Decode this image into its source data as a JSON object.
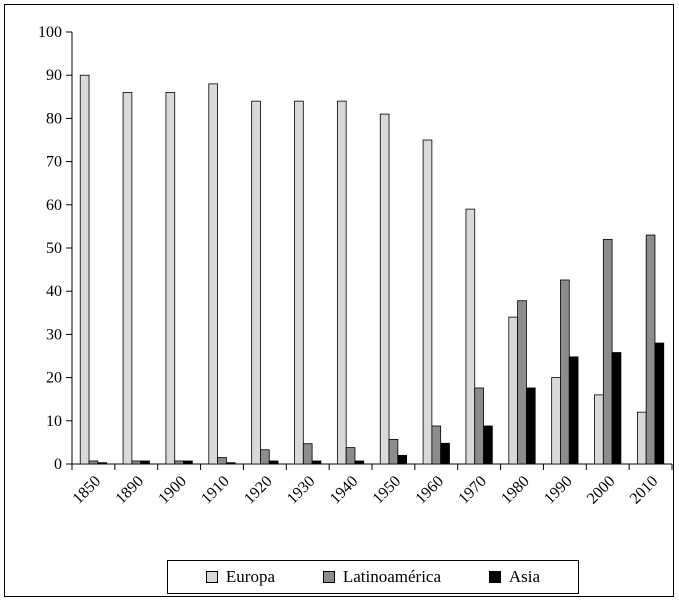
{
  "chart_data": {
    "type": "bar",
    "categories": [
      "1850",
      "1890",
      "1900",
      "1910",
      "1920",
      "1930",
      "1940",
      "1950",
      "1960",
      "1970",
      "1980",
      "1990",
      "2000",
      "2010"
    ],
    "series": [
      {
        "name": "Europa",
        "color": "#d9d9d9",
        "values": [
          90,
          86,
          86,
          88,
          84,
          84,
          84,
          81,
          75,
          59,
          34,
          20,
          16,
          12
        ]
      },
      {
        "name": "Latinoamérica",
        "color": "#8c8c8c",
        "values": [
          0.7,
          0.7,
          0.7,
          1.5,
          3.3,
          4.7,
          3.8,
          5.7,
          8.8,
          17.6,
          37.8,
          42.6,
          52,
          53
        ]
      },
      {
        "name": "Asia",
        "color": "#000000",
        "values": [
          0.3,
          0.7,
          0.7,
          0.3,
          0.7,
          0.7,
          0.7,
          2,
          4.8,
          8.8,
          17.6,
          24.8,
          25.8,
          28
        ]
      }
    ],
    "yticks": [
      0,
      10,
      20,
      30,
      40,
      50,
      60,
      70,
      80,
      90,
      100
    ],
    "ylim": [
      0,
      100
    ],
    "title": "",
    "xlabel": "",
    "ylabel": "",
    "grid": false,
    "legend_position": "bottom"
  }
}
